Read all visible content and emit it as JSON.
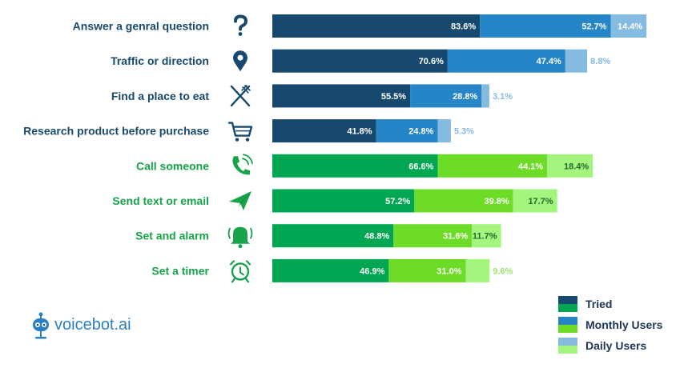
{
  "chart_data": {
    "type": "bar",
    "orientation": "horizontal",
    "stacked": true,
    "categories": [
      {
        "label": "Answer a genral question",
        "icon": "question-icon",
        "group": "blue"
      },
      {
        "label": "Traffic or direction",
        "icon": "map-pin-icon",
        "group": "blue"
      },
      {
        "label": "Find a place to eat",
        "icon": "fork-knife-icon",
        "group": "blue"
      },
      {
        "label": "Research product before purchase",
        "icon": "shopping-cart-icon",
        "group": "blue"
      },
      {
        "label": "Call someone",
        "icon": "phone-icon",
        "group": "green"
      },
      {
        "label": "Send text or email",
        "icon": "paper-plane-icon",
        "group": "green"
      },
      {
        "label": "Set and alarm",
        "icon": "bell-icon",
        "group": "green"
      },
      {
        "label": "Set a timer",
        "icon": "alarm-clock-icon",
        "group": "green"
      }
    ],
    "series": [
      {
        "name": "Tried",
        "values": [
          83.6,
          70.6,
          55.5,
          41.8,
          66.6,
          57.2,
          48.8,
          46.9
        ],
        "labels": [
          "83.6%",
          "70.6%",
          "55.5%",
          "41.8%",
          "66.6%",
          "57.2%",
          "48.8%",
          "46.9%"
        ]
      },
      {
        "name": "Monthly Users",
        "values": [
          52.7,
          47.4,
          28.8,
          24.8,
          44.1,
          39.8,
          31.6,
          31.0
        ],
        "labels": [
          "52.7%",
          "47.4%",
          "28.8%",
          "24.8%",
          "44.1%",
          "39.8%",
          "31.6%",
          "31.0%"
        ]
      },
      {
        "name": "Daily Users",
        "values": [
          14.4,
          8.8,
          3.1,
          5.3,
          18.4,
          17.7,
          11.7,
          9.6
        ],
        "labels": [
          "14.4%",
          "8.8%",
          "3.1%",
          "5.3%",
          "18.4%",
          "17.7%",
          "11.7%",
          "9.6%"
        ]
      }
    ],
    "colors": {
      "blue": [
        "#17496e",
        "#2585c7",
        "#85bbe0"
      ],
      "green": [
        "#00a651",
        "#6ddc26",
        "#a3f57d"
      ],
      "blue_label": "#17496e",
      "green_label": "#16a34a",
      "outside_label": "#85bbe0",
      "outside_label_green": "#9ae06a"
    },
    "legend_position": "bottom-right",
    "grid": false
  },
  "legend": {
    "items": [
      {
        "label": "Tried"
      },
      {
        "label": "Monthly Users"
      },
      {
        "label": "Daily Users"
      }
    ]
  },
  "logo": {
    "text": "voicebot.ai",
    "icon": "robot-microphone-icon"
  }
}
